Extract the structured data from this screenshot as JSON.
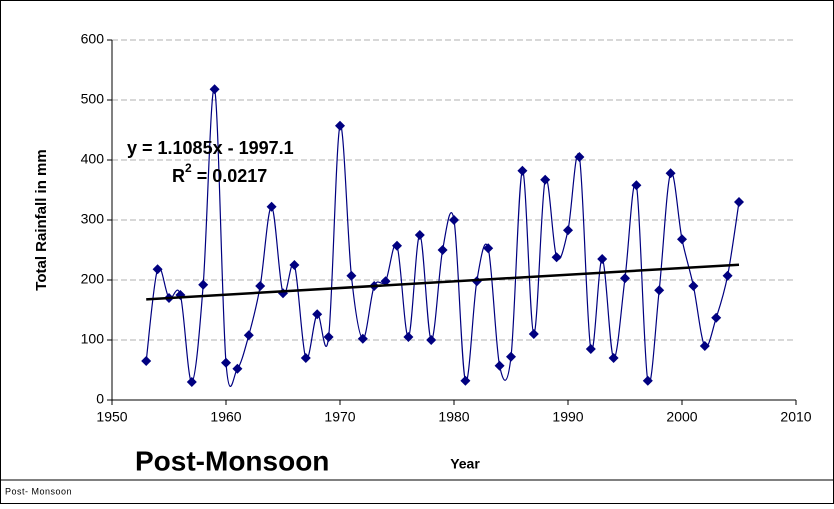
{
  "chart_data": {
    "type": "line",
    "title": "Post-Monsoon",
    "caption": "Post- Monsoon",
    "x_label": "Year",
    "y_label": "Total Rainfall in mm",
    "x": [
      1953,
      1954,
      1955,
      1956,
      1957,
      1958,
      1959,
      1960,
      1961,
      1962,
      1963,
      1964,
      1965,
      1966,
      1967,
      1968,
      1969,
      1970,
      1971,
      1972,
      1973,
      1974,
      1975,
      1976,
      1977,
      1978,
      1979,
      1980,
      1981,
      1982,
      1983,
      1984,
      1985,
      1986,
      1987,
      1988,
      1989,
      1990,
      1991,
      1992,
      1993,
      1994,
      1995,
      1996,
      1997,
      1998,
      1999,
      2000,
      2001,
      2002,
      2003,
      2004,
      2005
    ],
    "series": [
      {
        "color": "#000080",
        "values": [
          65,
          218,
          170,
          175,
          30,
          192,
          518,
          62,
          52,
          108,
          190,
          322,
          178,
          225,
          70,
          143,
          105,
          457,
          207,
          102,
          190,
          198,
          257,
          105,
          275,
          100,
          250,
          300,
          32,
          198,
          253,
          57,
          72,
          382,
          110,
          367,
          238,
          283,
          405,
          85,
          235,
          70,
          203,
          358,
          32,
          183,
          378,
          268,
          190,
          90,
          137,
          207,
          330
        ]
      }
    ],
    "trendline": {
      "slope": 1.1085,
      "intercept": -1997.1,
      "color": "#000000",
      "equation": "y = 1.1085x - 1997.1",
      "r2_symbol": "R",
      "r2_power": "2",
      "r2_text": " = 0.0217"
    },
    "xlim": [
      1950,
      2010
    ],
    "xticks": [
      1950,
      1960,
      1970,
      1980,
      1990,
      2000,
      2010
    ],
    "ylim": [
      0,
      600
    ],
    "yticks": [
      0,
      100,
      200,
      300,
      400,
      500,
      600
    ],
    "grid": true,
    "smooth": true
  }
}
